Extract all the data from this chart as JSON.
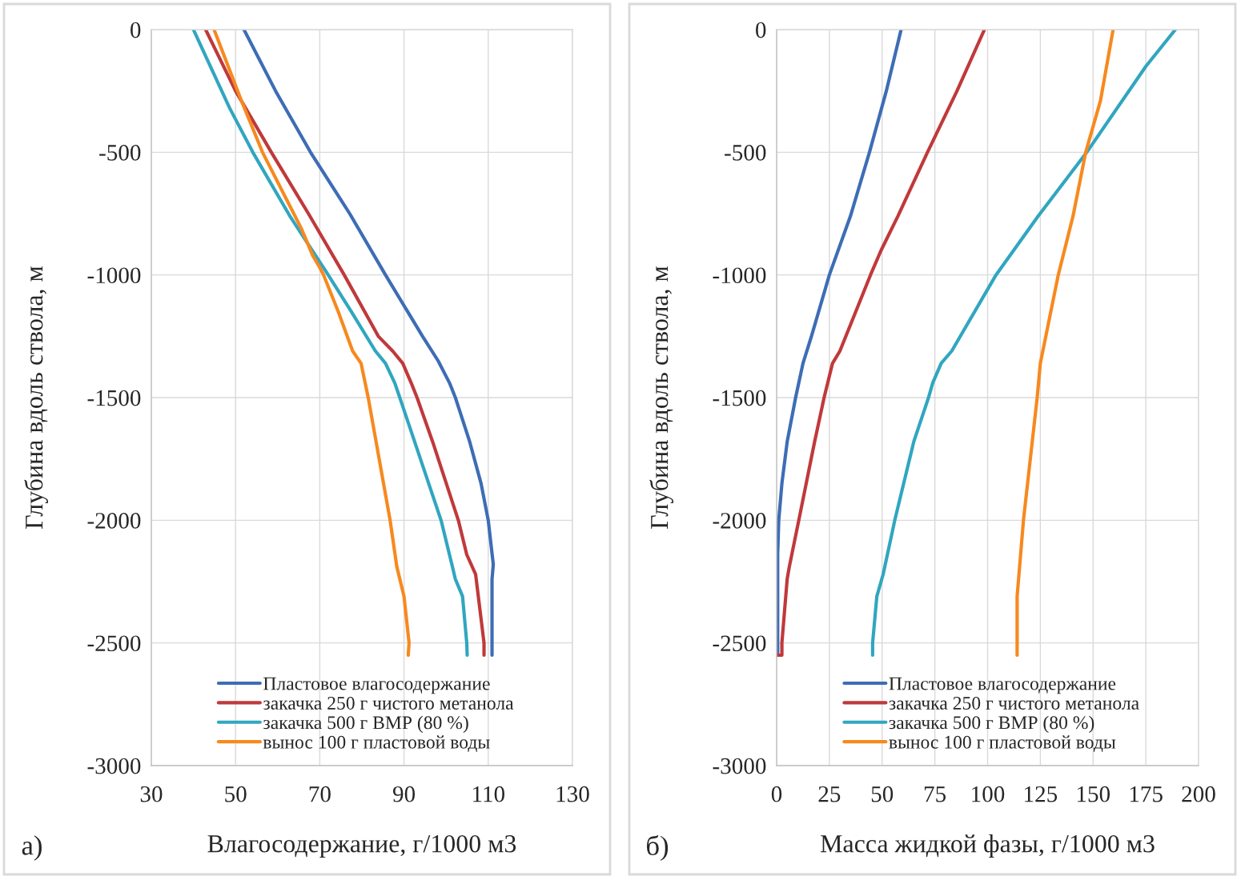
{
  "chart_data": [
    {
      "type": "line",
      "xlabel": "Влагосодержание, г/1000 м3",
      "ylabel": "Глубина вдоль ствола, м",
      "annotations": [
        "а)"
      ],
      "xlim": [
        30,
        130
      ],
      "xticks": [
        30,
        50,
        70,
        90,
        110,
        130
      ],
      "ylim": [
        -3000,
        0
      ],
      "yticks": [
        -3000,
        -2500,
        -2000,
        -1500,
        -1000,
        -500,
        0
      ],
      "grid": true,
      "legend": "bottom",
      "line_style": "solid",
      "series": [
        {
          "name": "Пластовое влагосодержание",
          "color": "#3d6db5",
          "x": [
            52.0,
            59.5,
            67.8,
            77.1,
            85.6,
            94.4,
            98.1,
            100.8,
            102.2,
            105.6,
            108.3,
            110.0,
            111.2,
            110.9,
            110.9
          ],
          "values": [
            0,
            -250,
            -500,
            -750,
            -1000,
            -1250,
            -1350,
            -1440,
            -1500,
            -1680,
            -1850,
            -2000,
            -2180,
            -2240,
            -2550
          ]
        },
        {
          "name": "закачка 250 г чистого метанола",
          "color": "#c0393b",
          "x": [
            42.9,
            50.0,
            58.5,
            67.3,
            75.8,
            83.9,
            87.3,
            89.7,
            91.7,
            93.1,
            96.8,
            102.9,
            104.9,
            107.0,
            109.0,
            109.0
          ],
          "values": [
            0,
            -250,
            -500,
            -750,
            -1000,
            -1250,
            -1310,
            -1360,
            -1440,
            -1500,
            -1680,
            -2000,
            -2140,
            -2220,
            -2500,
            -2550
          ]
        },
        {
          "name": "закачка 500 г ВМР (80 %)",
          "color": "#31a6c0",
          "x": [
            40.0,
            48.6,
            54.1,
            62.9,
            72.0,
            77.5,
            83.2,
            85.6,
            87.8,
            89.0,
            98.8,
            101.5,
            102.2,
            103.9,
            104.9,
            105.0
          ],
          "values": [
            0,
            -320,
            -500,
            -760,
            -1000,
            -1150,
            -1310,
            -1360,
            -1440,
            -1500,
            -2000,
            -2190,
            -2240,
            -2310,
            -2500,
            -2550
          ]
        },
        {
          "name": "вынос 100 г пластовой воды",
          "color": "#f7891f",
          "x": [
            44.9,
            51.4,
            56.4,
            65.6,
            68.3,
            70.0,
            70.9,
            74.4,
            77.8,
            79.8,
            81.5,
            86.7,
            88.3,
            90.0,
            91.2,
            91.0
          ],
          "values": [
            0,
            -290,
            -500,
            -810,
            -920,
            -970,
            -1000,
            -1150,
            -1310,
            -1360,
            -1500,
            -2000,
            -2190,
            -2310,
            -2500,
            -2550
          ]
        }
      ]
    },
    {
      "type": "line",
      "xlabel": "Масса жидкой фазы, г/1000 м3",
      "ylabel": "Глубина вдоль ствола, м",
      "annotations": [
        "б)"
      ],
      "xlim": [
        0,
        200
      ],
      "xticks": [
        0,
        25,
        50,
        75,
        100,
        125,
        150,
        175,
        200
      ],
      "ylim": [
        -3000,
        0
      ],
      "yticks": [
        -3000,
        -2500,
        -2000,
        -1500,
        -1000,
        -500,
        0
      ],
      "grid": true,
      "legend": "bottom",
      "line_style": "solid",
      "series": [
        {
          "name": "Пластовое влагосодержание",
          "color": "#3d6db5",
          "x": [
            59,
            52,
            44,
            35,
            25,
            16.5,
            12.5,
            9,
            5,
            2.5,
            1,
            0.5,
            0.5
          ],
          "values": [
            0,
            -250,
            -500,
            -760,
            -1000,
            -1250,
            -1360,
            -1500,
            -1680,
            -1850,
            -2000,
            -2140,
            -2550
          ]
        },
        {
          "name": "закачка 250 г чистого метанола",
          "color": "#c0393b",
          "x": [
            98.5,
            85.5,
            71.5,
            57.5,
            49.5,
            44.5,
            30,
            26.5,
            22.5,
            18,
            10.5,
            6,
            5,
            2.5,
            2.5,
            0.5
          ],
          "values": [
            0,
            -250,
            -500,
            -760,
            -900,
            -1000,
            -1310,
            -1360,
            -1500,
            -1680,
            -2000,
            -2190,
            -2240,
            -2500,
            -2550,
            -2550
          ]
        },
        {
          "name": "закачка 500 г ВМР (80 %)",
          "color": "#31a6c0",
          "x": [
            189,
            175,
            147,
            124,
            106.5,
            104,
            83,
            78,
            74,
            72,
            65,
            56,
            50.5,
            47.5,
            45.5,
            45.5
          ],
          "values": [
            0,
            -150,
            -500,
            -760,
            -970,
            -1000,
            -1310,
            -1360,
            -1440,
            -1500,
            -1680,
            -2000,
            -2220,
            -2310,
            -2500,
            -2550
          ]
        },
        {
          "name": "вынос 100 г пластовой воды",
          "color": "#f7891f",
          "x": [
            159.5,
            153.5,
            146.5,
            140.5,
            133.5,
            125,
            123.5,
            117,
            114,
            114,
            114
          ],
          "values": [
            0,
            -290,
            -500,
            -760,
            -1000,
            -1360,
            -1500,
            -2000,
            -2310,
            -2500,
            -2550
          ]
        }
      ]
    }
  ]
}
